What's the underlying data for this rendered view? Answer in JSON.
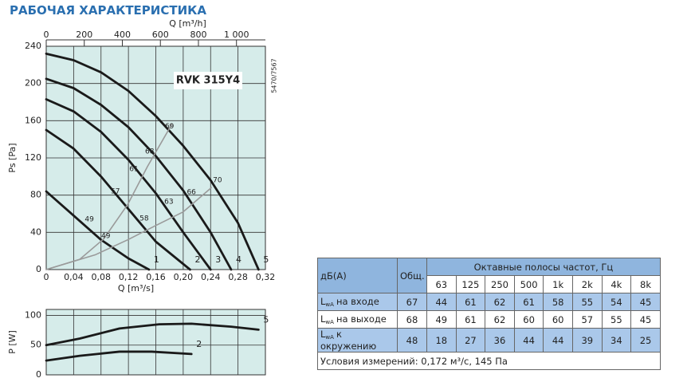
{
  "title": "РАБОЧАЯ ХАРАКТЕРИСТИКА",
  "chart_data": [
    {
      "type": "line",
      "label": "RVK 315Y4",
      "code": "5470/7567",
      "xlabel": "Q [m³/s]",
      "ylabel": "Ps [Pa]",
      "x2label": "Q [m³/h]",
      "xlim": [
        0,
        0.32
      ],
      "ylim": [
        0,
        240
      ],
      "x2lim": [
        0,
        1152
      ],
      "xticks": [
        0,
        {
          "value": 0.04,
          "label": "0,04"
        },
        {
          "value": 0.08,
          "label": "0,08"
        },
        {
          "value": 0.12,
          "label": "0,12"
        },
        {
          "value": 0.16,
          "label": "0,16"
        },
        {
          "value": 0.2,
          "label": "0,20"
        },
        {
          "value": 0.24,
          "label": "0,24"
        },
        {
          "value": 0.28,
          "label": "0,28"
        },
        {
          "value": 0.32,
          "label": "0,32"
        }
      ],
      "yticks": [
        0,
        40,
        80,
        120,
        160,
        200,
        240
      ],
      "x2ticks": [
        0,
        200,
        400,
        600,
        800,
        {
          "value": 1000,
          "label": "1 000"
        }
      ],
      "show_xtick_labels": true,
      "grid": true,
      "background": "#d6ecea",
      "series": [
        {
          "name": "1",
          "color": "#1a1a1a",
          "x": [
            0,
            0.04,
            0.08,
            0.12,
            0.15
          ],
          "values": [
            84,
            58,
            32,
            12,
            0
          ]
        },
        {
          "name": "2",
          "color": "#1a1a1a",
          "x": [
            0,
            0.04,
            0.08,
            0.12,
            0.16,
            0.21
          ],
          "values": [
            150,
            130,
            100,
            65,
            30,
            0
          ]
        },
        {
          "name": "3",
          "color": "#1a1a1a",
          "x": [
            0,
            0.04,
            0.08,
            0.12,
            0.16,
            0.2,
            0.24
          ],
          "values": [
            183,
            170,
            148,
            118,
            82,
            40,
            0
          ]
        },
        {
          "name": "4",
          "color": "#1a1a1a",
          "x": [
            0,
            0.04,
            0.08,
            0.12,
            0.16,
            0.2,
            0.24,
            0.27
          ],
          "values": [
            205,
            195,
            177,
            153,
            122,
            85,
            40,
            0
          ]
        },
        {
          "name": "5",
          "color": "#1a1a1a",
          "x": [
            0,
            0.04,
            0.08,
            0.12,
            0.16,
            0.2,
            0.24,
            0.28,
            0.31
          ],
          "values": [
            232,
            225,
            212,
            192,
            165,
            133,
            96,
            50,
            0
          ]
        },
        {
          "color": "#9a9a9a",
          "x": [
            0,
            0.049,
            0.084,
            0.119,
            0.148,
            0.177,
            0.183
          ],
          "values": [
            0,
            11,
            33,
            70,
            111,
            148,
            156
          ]
        },
        {
          "color": "#9a9a9a",
          "x": [
            0,
            0.072,
            0.119,
            0.159,
            0.2,
            0.241
          ],
          "values": [
            0,
            16,
            32,
            47,
            62,
            88
          ]
        }
      ],
      "annotations": [
        {
          "text": "49",
          "x": 0.063,
          "y": 54
        },
        {
          "text": "57",
          "x": 0.101,
          "y": 84
        },
        {
          "text": "61",
          "x": 0.128,
          "y": 108
        },
        {
          "text": "68",
          "x": 0.151,
          "y": 127
        },
        {
          "text": "69",
          "x": 0.18,
          "y": 154
        },
        {
          "text": "49",
          "x": 0.087,
          "y": 36
        },
        {
          "text": "58",
          "x": 0.143,
          "y": 55
        },
        {
          "text": "63",
          "x": 0.179,
          "y": 73
        },
        {
          "text": "66",
          "x": 0.212,
          "y": 83
        },
        {
          "text": "70",
          "x": 0.25,
          "y": 96
        }
      ]
    },
    {
      "type": "line",
      "ylabel": "P [W]",
      "xlim": [
        0,
        0.32
      ],
      "ylim": [
        0,
        110
      ],
      "xticks": [
        0,
        0.04,
        0.08,
        0.12,
        0.16,
        0.2,
        0.24,
        0.28,
        0.32
      ],
      "yticks": [
        0,
        50,
        100
      ],
      "show_xtick_labels": false,
      "grid": true,
      "background": "#d6ecea",
      "series": [
        {
          "name": "2",
          "color": "#1a1a1a",
          "x": [
            0,
            0.049,
            0.107,
            0.154,
            0.212
          ],
          "values": [
            24,
            32,
            39,
            39,
            35
          ]
        },
        {
          "name": "5",
          "color": "#1a1a1a",
          "x": [
            0,
            0.049,
            0.107,
            0.165,
            0.212,
            0.27,
            0.31
          ],
          "values": [
            50,
            61,
            78,
            85,
            86,
            81,
            76
          ]
        }
      ]
    }
  ],
  "table": {
    "header": {
      "unit": "дБ(A)",
      "total": "Общ.",
      "bands_title": "Октавные полосы частот, Гц",
      "bands": [
        "63",
        "125",
        "250",
        "500",
        "1k",
        "2k",
        "4k",
        "8k"
      ]
    },
    "rows": [
      {
        "symbol": "L",
        "sub": "wA",
        "label": "на входе",
        "values": [
          67,
          44,
          61,
          62,
          61,
          58,
          55,
          54,
          45
        ]
      },
      {
        "symbol": "L",
        "sub": "wA",
        "label": "на выходе",
        "values": [
          68,
          49,
          61,
          62,
          60,
          60,
          57,
          55,
          45
        ]
      },
      {
        "symbol": "L",
        "sub": "wA",
        "label": "к окружению",
        "values": [
          48,
          18,
          27,
          36,
          44,
          44,
          39,
          34,
          25
        ]
      }
    ],
    "note": "Условия измерений: 0,172 м³/с, 145 Па"
  }
}
